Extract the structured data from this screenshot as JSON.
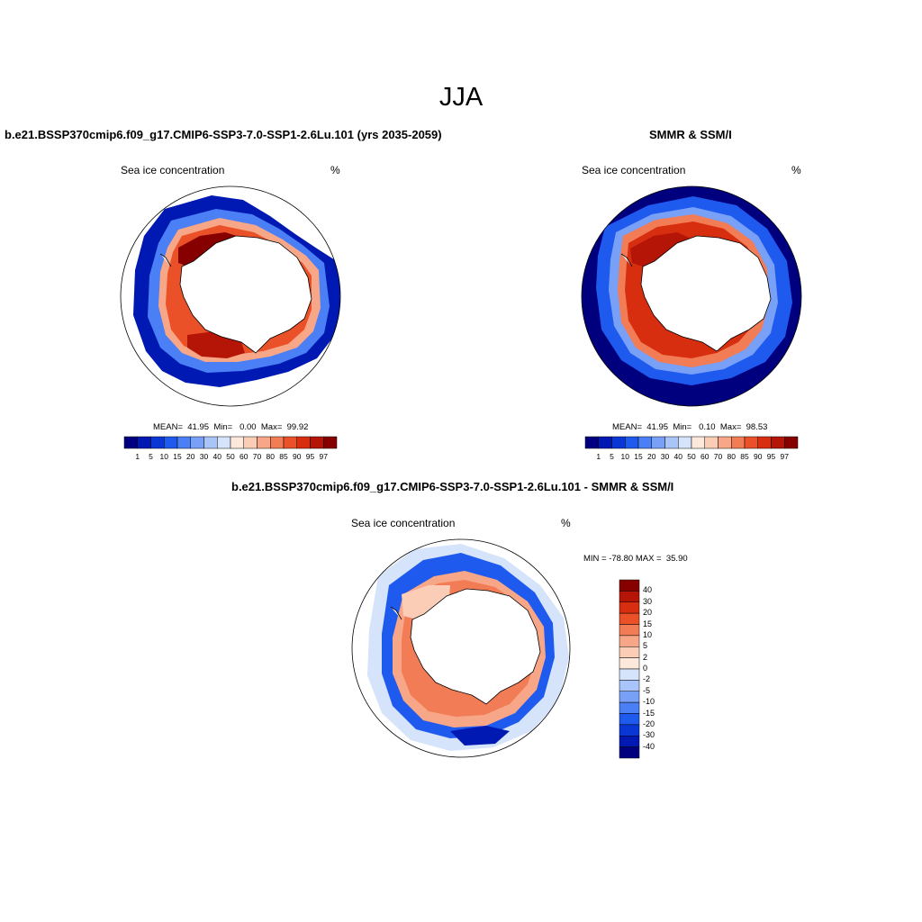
{
  "main_title": "JJA",
  "panels": [
    {
      "title": "b.e21.BSSP370cmip6.f09_g17.CMIP6-SSP3-7.0-SSP1-2.6Lu.101 (yrs 2035-2059)",
      "var_label": "Sea ice concentration",
      "units": "%",
      "stats": "MEAN=  41.95  Min=   0.00  Max=  99.92"
    },
    {
      "title": "SMMR & SSM/I",
      "var_label": "Sea ice concentration",
      "units": "%",
      "stats": "MEAN=  41.95  Min=   0.10  Max=  98.53"
    },
    {
      "title": "b.e21.BSSP370cmip6.f09_g17.CMIP6-SSP3-7.0-SSP1-2.6Lu.101 - SMMR & SSM/I",
      "var_label": "Sea ice concentration",
      "units": "%",
      "stats": "MIN = -78.80 MAX =  35.90"
    }
  ],
  "conc_colorbar": {
    "labels": [
      "1",
      "5",
      "10",
      "15",
      "20",
      "30",
      "40",
      "50",
      "60",
      "70",
      "80",
      "85",
      "90",
      "95",
      "97"
    ],
    "colors": [
      "#00007f",
      "#0019b3",
      "#0a36d4",
      "#1f5aee",
      "#4a7ff5",
      "#78a0f7",
      "#a9c4f9",
      "#d5e4fb",
      "#fde9dc",
      "#fbcdb6",
      "#f7a787",
      "#f27c55",
      "#ea5129",
      "#d72e10",
      "#b51507",
      "#860000"
    ]
  },
  "diff_colorbar": {
    "labels": [
      "40",
      "30",
      "20",
      "15",
      "10",
      "5",
      "2",
      "0",
      "-2",
      "-5",
      "-10",
      "-15",
      "-20",
      "-30",
      "-40"
    ],
    "colors": [
      "#860000",
      "#b51507",
      "#d72e10",
      "#ea5129",
      "#f27c55",
      "#f7a787",
      "#fbcdb6",
      "#fde9dc",
      "#d5e4fb",
      "#a9c4f9",
      "#78a0f7",
      "#4a7ff5",
      "#1f5aee",
      "#0a36d4",
      "#0019b3",
      "#00007f"
    ]
  }
}
